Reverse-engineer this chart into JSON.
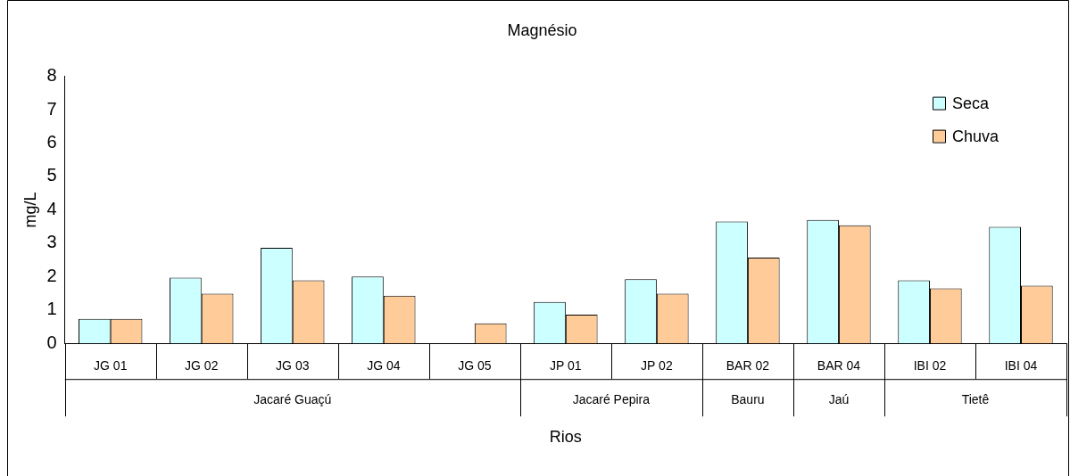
{
  "chart_data": {
    "type": "bar",
    "title": "Magnésio",
    "xlabel": "Rios",
    "ylabel": "mg/L",
    "categories": [
      "JG 01",
      "JG 02",
      "JG 03",
      "JG 04",
      "JG 05",
      "JP 01",
      "JP 02",
      "BAR 02",
      "BAR 04",
      "IBI 02",
      "IBI 04"
    ],
    "series": [
      {
        "name": "Seca",
        "color": "#ccffff",
        "values": [
          0.73,
          1.97,
          2.86,
          2.0,
          null,
          1.24,
          1.92,
          3.65,
          3.7,
          1.89,
          3.49
        ]
      },
      {
        "name": "Chuva",
        "color": "#ffcc99",
        "values": [
          0.73,
          1.49,
          1.89,
          1.43,
          0.6,
          0.86,
          1.49,
          2.57,
          3.54,
          1.65,
          1.73
        ]
      }
    ],
    "annotations": [
      "Jacaré Guaçú",
      "Jacaré Pepira",
      "Bauru",
      "Jaú",
      "Tietê"
    ],
    "ylim": [
      0,
      8
    ],
    "yticks": [
      0,
      1,
      2,
      3,
      4,
      5,
      6,
      7,
      8
    ],
    "grid": false,
    "legend": "top right"
  }
}
